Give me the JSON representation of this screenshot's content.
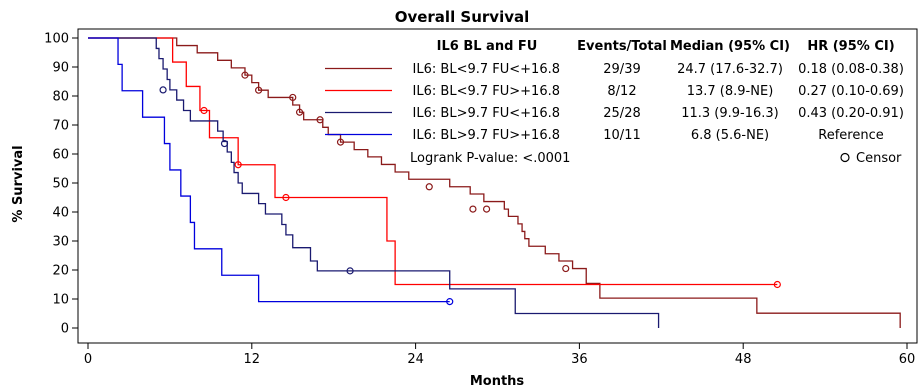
{
  "chart_data": {
    "type": "line",
    "title": "Overall Survival",
    "xlabel": "Months",
    "ylabel": "% Survival",
    "xlim": [
      0,
      60
    ],
    "ylim": [
      0,
      100
    ],
    "xticks": [
      0,
      12,
      24,
      36,
      48,
      60
    ],
    "yticks": [
      0,
      10,
      20,
      30,
      40,
      50,
      60,
      70,
      80,
      90,
      100
    ],
    "grid": false,
    "legend_position": "top-right",
    "legend": {
      "header_group": "IL6 BL and FU",
      "header_events": "Events/Total",
      "header_median": "Median (95% CI)",
      "header_hr": "HR (95% CI)",
      "logrank": "Logrank P-value: <.0001",
      "censor_label": "Censor"
    },
    "series": [
      {
        "name": "IL6: BL<9.7 FU<+16.8",
        "color": "#8b1a1a",
        "events_total": "29/39",
        "median": "24.7 (17.6-32.7)",
        "hr": "0.18 (0.08-0.38)",
        "steps": [
          [
            0,
            100
          ],
          [
            5.6,
            100
          ],
          [
            6.5,
            97.4
          ],
          [
            8,
            94.9
          ],
          [
            9.5,
            92.3
          ],
          [
            10.5,
            89.7
          ],
          [
            11.5,
            87.2
          ],
          [
            12,
            84.6
          ],
          [
            12.5,
            82
          ],
          [
            13.2,
            79.5
          ],
          [
            15,
            76.9
          ],
          [
            15.5,
            74.4
          ],
          [
            15.8,
            71.8
          ],
          [
            17.2,
            69.2
          ],
          [
            17.6,
            66.7
          ],
          [
            18.5,
            64.1
          ],
          [
            19.5,
            61.5
          ],
          [
            20.5,
            59
          ],
          [
            21.5,
            56.4
          ],
          [
            22.5,
            53.8
          ],
          [
            23.5,
            51.3
          ],
          [
            26.5,
            48.7
          ],
          [
            28,
            46.2
          ],
          [
            29,
            43.6
          ],
          [
            30.5,
            41
          ],
          [
            30.8,
            38.5
          ],
          [
            31.5,
            35.9
          ],
          [
            31.8,
            33.3
          ],
          [
            32,
            30.8
          ],
          [
            32.3,
            28.2
          ],
          [
            33.5,
            25.6
          ],
          [
            34.5,
            23.1
          ],
          [
            35.5,
            20.5
          ],
          [
            36.5,
            15.4
          ],
          [
            37.5,
            10.3
          ],
          [
            49,
            5.1
          ],
          [
            59.5,
            5.1
          ],
          [
            59.5,
            0
          ]
        ],
        "censored": [
          [
            11.5,
            87.2
          ],
          [
            12.5,
            82
          ],
          [
            15,
            79.5
          ],
          [
            15.5,
            74.4
          ],
          [
            17,
            71.8
          ],
          [
            18.5,
            64.1
          ],
          [
            25,
            48.7
          ],
          [
            28.2,
            41
          ],
          [
            29.2,
            41
          ],
          [
            35,
            20.5
          ]
        ]
      },
      {
        "name": "IL6: BL<9.7 FU>+16.8",
        "color": "#ff0000",
        "events_total": "8/12",
        "median": "13.7 (8.9-NE)",
        "hr": "0.27 (0.10-0.69)",
        "steps": [
          [
            0,
            100
          ],
          [
            5.8,
            100
          ],
          [
            6.2,
            91.7
          ],
          [
            7.2,
            83.3
          ],
          [
            8.2,
            75
          ],
          [
            8.9,
            65.6
          ],
          [
            11,
            56.3
          ],
          [
            13.7,
            45
          ],
          [
            21.9,
            45
          ],
          [
            21.9,
            30
          ],
          [
            22.5,
            15
          ],
          [
            50.5,
            15
          ]
        ],
        "censored": [
          [
            8.5,
            75
          ],
          [
            11,
            56.3
          ],
          [
            14.5,
            45
          ],
          [
            50.5,
            15
          ]
        ]
      },
      {
        "name": "IL6: BL>9.7 FU<+16.8",
        "color": "#1a1a70",
        "events_total": "25/28",
        "median": "11.3 (9.9-16.3)",
        "hr": "0.43 (0.20-0.91)",
        "steps": [
          [
            0,
            100
          ],
          [
            4.5,
            100
          ],
          [
            5,
            96.4
          ],
          [
            5.2,
            92.9
          ],
          [
            5.5,
            89.3
          ],
          [
            5.8,
            85.7
          ],
          [
            6,
            82.1
          ],
          [
            6.2,
            82.1
          ],
          [
            6.5,
            78.6
          ],
          [
            7,
            75
          ],
          [
            7.5,
            71.4
          ],
          [
            9.5,
            67.9
          ],
          [
            9.9,
            64.3
          ],
          [
            10.2,
            60.7
          ],
          [
            10.5,
            57.1
          ],
          [
            10.7,
            53.6
          ],
          [
            11,
            50
          ],
          [
            11.3,
            46.4
          ],
          [
            12.5,
            42.9
          ],
          [
            13,
            39.3
          ],
          [
            14.2,
            35.7
          ],
          [
            14.5,
            32.1
          ],
          [
            15,
            27.7
          ],
          [
            16.3,
            23.1
          ],
          [
            16.8,
            19.7
          ],
          [
            26.5,
            19.7
          ],
          [
            26.5,
            13.5
          ],
          [
            31,
            13.5
          ],
          [
            31.3,
            5
          ],
          [
            41.8,
            5
          ],
          [
            41.8,
            0
          ]
        ],
        "censored": [
          [
            5.5,
            82.1
          ],
          [
            10,
            63.6
          ],
          [
            19.2,
            19.7
          ]
        ]
      },
      {
        "name": "IL6: BL>9.7 FU>+16.8",
        "color": "#0000dd",
        "events_total": "10/11",
        "median": "6.8 (5.6-NE)",
        "hr": "Reference",
        "steps": [
          [
            0,
            100
          ],
          [
            2,
            100
          ],
          [
            2.2,
            90.9
          ],
          [
            2.5,
            81.8
          ],
          [
            4,
            72.7
          ],
          [
            5.6,
            63.6
          ],
          [
            6,
            54.5
          ],
          [
            6.8,
            45.5
          ],
          [
            7.5,
            36.4
          ],
          [
            7.8,
            27.3
          ],
          [
            9.8,
            18.2
          ],
          [
            12.5,
            9.1
          ],
          [
            26.5,
            9.1
          ]
        ],
        "censored": [
          [
            26.5,
            9.1
          ]
        ]
      }
    ]
  }
}
